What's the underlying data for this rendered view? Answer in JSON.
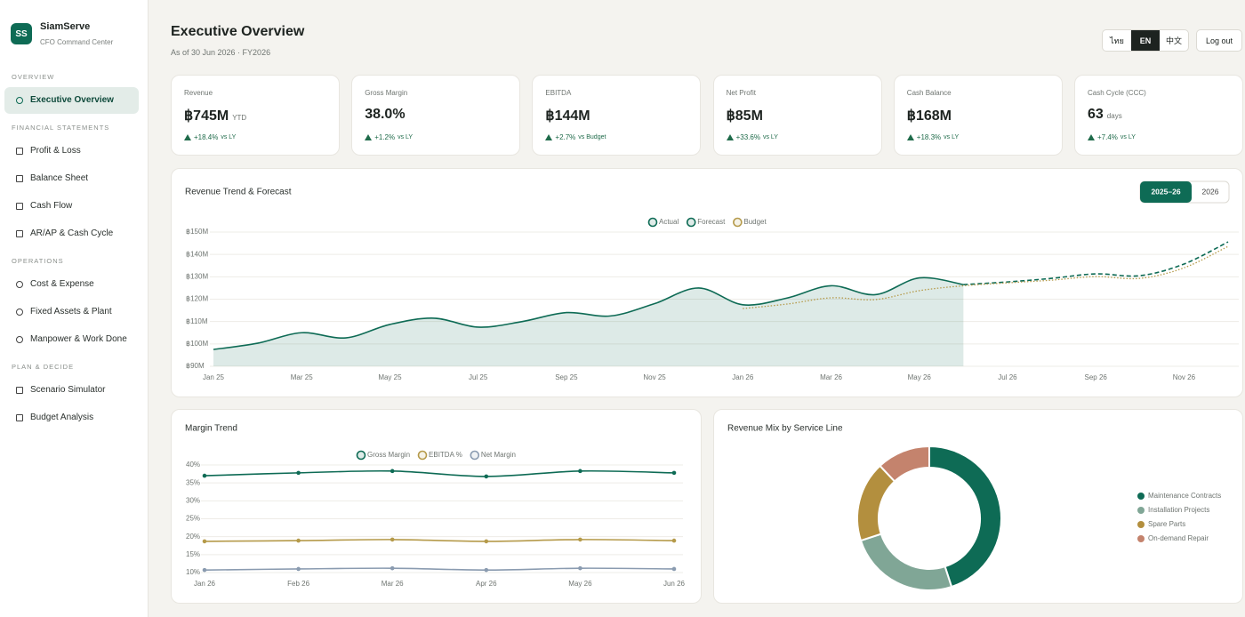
{
  "sidebar": {
    "logo": "SS",
    "brand": "SiamServe",
    "tagline": "CFO Command Center",
    "sections": [
      {
        "title": "OVERVIEW",
        "items": [
          "Executive Overview"
        ],
        "active_item": 0
      },
      {
        "title": "FINANCIAL STATEMENTS",
        "items": [
          "Profit & Loss",
          "Balance Sheet",
          "Cash Flow",
          "AR/AP & Cash Cycle"
        ]
      },
      {
        "title": "OPERATIONS",
        "items": [
          "Cost & Expense",
          "Fixed Assets & Plant",
          "Manpower & Work Done"
        ]
      },
      {
        "title": "PLAN & DECIDE",
        "items": [
          "Scenario Simulator",
          "Budget Analysis"
        ]
      }
    ]
  },
  "header": {
    "title": "Executive Overview",
    "subtitle": "As of 30 Jun 2026 · FY2026",
    "languages": [
      "ไทย",
      "EN",
      "中文"
    ],
    "active_language": 1,
    "logout": "Log out"
  },
  "kpis": [
    {
      "label": "Revenue",
      "value": "฿745M",
      "unit": "YTD",
      "delta": "+18.4%",
      "note": "vs LY"
    },
    {
      "label": "Gross Margin",
      "value": "38.0%",
      "delta": "+1.2%",
      "note": "vs LY"
    },
    {
      "label": "EBITDA",
      "value": "฿144M",
      "delta": "+2.7%",
      "note": "vs Budget"
    },
    {
      "label": "Net Profit",
      "value": "฿85M",
      "delta": "+33.6%",
      "note": "vs LY"
    },
    {
      "label": "Cash Balance",
      "value": "฿168M",
      "delta": "+18.3%",
      "note": "vs LY"
    },
    {
      "label": "Cash Cycle (CCC)",
      "value": "63",
      "unit": "days",
      "delta": "+7.4%",
      "note": "vs LY"
    }
  ],
  "chart_data": [
    {
      "type": "line",
      "title": "Revenue Trend & Forecast",
      "periods": [
        "2025–26",
        "2026"
      ],
      "active_period": 0,
      "categories": [
        "Jan 25",
        null,
        "Mar 25",
        null,
        "May 25",
        null,
        "Jul 25",
        null,
        "Sep 25",
        null,
        "Nov 25",
        null,
        "Jan 26",
        null,
        "Mar 26",
        null,
        "May 26",
        null,
        "Jul 26",
        null,
        "Sep 26",
        null,
        "Nov 26",
        null
      ],
      "series": [
        {
          "name": "Actual",
          "color": "#0e6b55",
          "area": true,
          "values": [
            97.5,
            100.3,
            105,
            102.7,
            108.7,
            111.5,
            107.5,
            110,
            114,
            112.5,
            118,
            125,
            117.5,
            120.5,
            126,
            122,
            129.5,
            126.5,
            null,
            null,
            null,
            null,
            null,
            null
          ]
        },
        {
          "name": "Forecast",
          "color": "#0e6b55",
          "style": "dashed",
          "values": [
            null,
            null,
            null,
            null,
            null,
            null,
            null,
            null,
            null,
            null,
            null,
            null,
            null,
            null,
            null,
            null,
            null,
            126.5,
            127.7,
            129.3,
            131.3,
            130.5,
            135.7,
            145.6
          ]
        },
        {
          "name": "Budget",
          "color": "#b59a4a",
          "style": "dotted",
          "values": [
            null,
            null,
            null,
            null,
            null,
            null,
            null,
            null,
            null,
            null,
            null,
            null,
            115.8,
            117.8,
            120.6,
            119.8,
            123.8,
            126,
            127.3,
            128.5,
            130.1,
            129.3,
            134,
            143.6
          ]
        }
      ],
      "ylim": [
        90,
        150
      ],
      "yticks": [
        {
          "value": 90,
          "label": "฿90M"
        },
        {
          "value": 100,
          "label": "฿100M"
        },
        {
          "value": 110,
          "label": "฿110M"
        },
        {
          "value": 120,
          "label": "฿120M"
        },
        {
          "value": 130,
          "label": "฿130M"
        },
        {
          "value": 140,
          "label": "฿140M"
        },
        {
          "value": 150,
          "label": "฿150M"
        }
      ],
      "grid": true
    },
    {
      "type": "line",
      "title": "Margin Trend",
      "categories": [
        "Jan 26",
        "Feb 26",
        "Mar 26",
        "Apr 26",
        "May 26",
        "Jun 26"
      ],
      "series": [
        {
          "name": "Gross Margin",
          "color": "#0e6b55",
          "values": [
            37.0,
            37.8,
            38.3,
            36.8,
            38.3,
            37.8
          ]
        },
        {
          "name": "EBITDA %",
          "color": "#b59a4a",
          "values": [
            18.7,
            18.9,
            19.2,
            18.7,
            19.2,
            18.9
          ]
        },
        {
          "name": "Net Margin",
          "color": "#8a9bb0",
          "values": [
            10.7,
            11.0,
            11.2,
            10.7,
            11.2,
            11.0
          ]
        }
      ],
      "ylim": [
        10,
        40
      ],
      "yticks": [
        {
          "value": 10,
          "label": "10%"
        },
        {
          "value": 15,
          "label": "15%"
        },
        {
          "value": 20,
          "label": "20%"
        },
        {
          "value": 25,
          "label": "25%"
        },
        {
          "value": 30,
          "label": "30%"
        },
        {
          "value": 35,
          "label": "35%"
        },
        {
          "value": 40,
          "label": "40%"
        }
      ],
      "grid": true
    },
    {
      "type": "donut",
      "title": "Revenue Mix by Service Line",
      "categories": [
        "Maintenance Contracts",
        "Installation Projects",
        "Spare Parts",
        "On-demand Repair"
      ],
      "values": [
        45,
        25,
        18,
        12
      ],
      "colors": [
        "#0e6b55",
        "#80a696",
        "#b38f3e",
        "#c4836d"
      ],
      "legend": "right"
    }
  ]
}
